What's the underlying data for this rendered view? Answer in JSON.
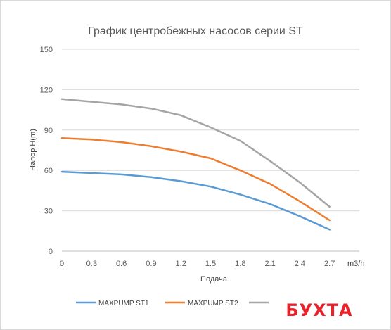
{
  "chart_data": {
    "type": "line",
    "title": "График центробежных насосов серии ST",
    "xlabel": "Подача",
    "ylabel": "Напор H(m)",
    "x_unit": "m3/h",
    "x": [
      0,
      0.3,
      0.6,
      0.9,
      1.2,
      1.5,
      1.8,
      2.1,
      2.4,
      2.7
    ],
    "x_tick_labels": [
      "0",
      "0.3",
      "0.6",
      "0.9",
      "1.2",
      "1.5",
      "1.8",
      "2.1",
      "2.4",
      "2.7"
    ],
    "xlim": [
      0,
      3.0
    ],
    "ylim": [
      0,
      150
    ],
    "y_ticks": [
      0,
      30,
      60,
      90,
      120,
      150
    ],
    "grid": "horizontal",
    "legend_position": "bottom",
    "series": [
      {
        "name": "MAXPUMP ST1",
        "color": "#5b9bd5",
        "values": [
          59,
          58,
          57,
          55,
          52,
          48,
          42,
          35,
          26,
          16
        ]
      },
      {
        "name": "MAXPUMP ST2",
        "color": "#ed7d31",
        "values": [
          84,
          83,
          81,
          78,
          74,
          69,
          60,
          50,
          37,
          23
        ]
      },
      {
        "name": "",
        "color": "#a5a5a5",
        "values": [
          113,
          111,
          109,
          106,
          101,
          92,
          82,
          67,
          51,
          33
        ]
      }
    ]
  },
  "watermark_text": "БУХТА"
}
